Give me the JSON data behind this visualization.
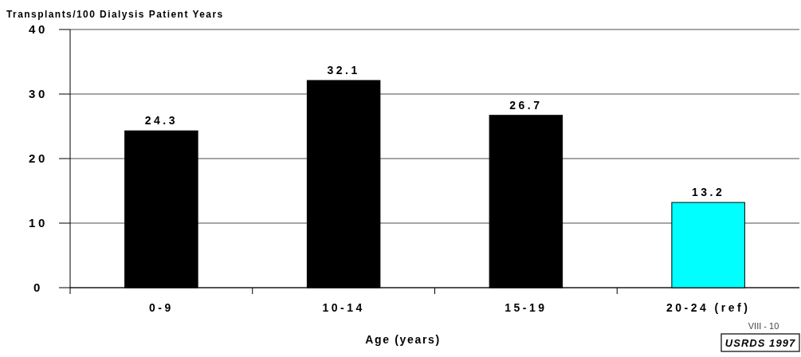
{
  "chart_data": {
    "type": "bar",
    "ylabel": "Transplants/100 Dialysis Patient Years",
    "xlabel": "Age (years)",
    "categories": [
      "0-9",
      "10-14",
      "15-19",
      "20-24 (ref)"
    ],
    "values": [
      24.3,
      32.1,
      26.7,
      13.2
    ],
    "colors": [
      "#000000",
      "#000000",
      "#000000",
      "#00ffff"
    ],
    "ylim": [
      0,
      40
    ],
    "yticks": [
      0,
      10,
      20,
      30,
      40
    ],
    "grid": "y",
    "data_labels": true,
    "annotations": [
      "VIII - 10",
      "USRDS 1997"
    ]
  }
}
